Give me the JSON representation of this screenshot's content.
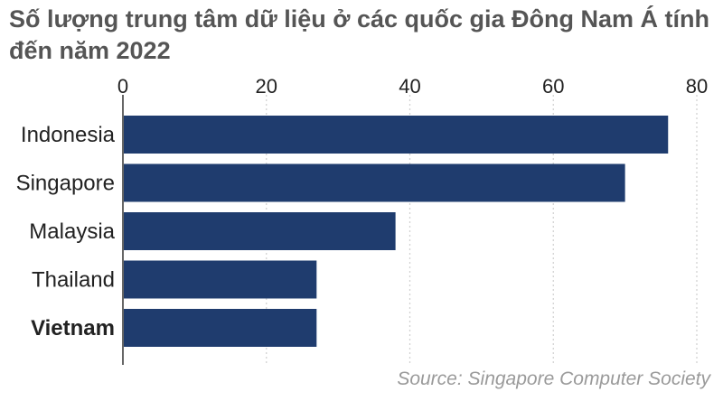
{
  "title": "Số lượng trung tâm dữ liệu ở các quốc gia Đông Nam Á tính đến năm 2022",
  "source": "Source: Singapore Computer Society",
  "colors": {
    "bar": "#1f3c6e",
    "grid": "#cfcfcf",
    "axis": "#333333"
  },
  "chart_data": {
    "type": "bar",
    "orientation": "horizontal",
    "title": "Số lượng trung tâm dữ liệu ở các quốc gia Đông Nam Á tính đến năm 2022",
    "categories": [
      "Indonesia",
      "Singapore",
      "Malaysia",
      "Thailand",
      "Vietnam"
    ],
    "values": [
      76,
      70,
      38,
      27,
      27
    ],
    "highlight": "Vietnam",
    "xlim": [
      0,
      80
    ],
    "xticks": [
      0,
      20,
      40,
      60,
      80
    ],
    "xaxis_position": "top",
    "grid": true,
    "xlabel": "",
    "ylabel": ""
  }
}
